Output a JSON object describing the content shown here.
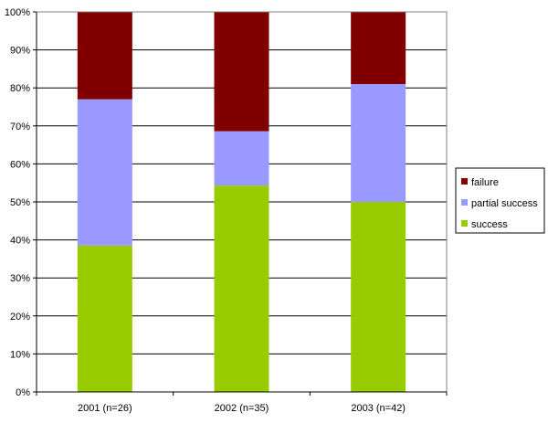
{
  "chart_data": {
    "type": "bar",
    "stacked": true,
    "percent_stacked": true,
    "title": "",
    "xlabel": "",
    "ylabel": "",
    "categories": [
      "2001 (n=26)",
      "2002 (n=35)",
      "2003 (n=42)"
    ],
    "series": [
      {
        "name": "success",
        "values": [
          38.5,
          54.3,
          50.0
        ],
        "color": "#99cc00"
      },
      {
        "name": "partial success",
        "values": [
          38.5,
          14.3,
          31.0
        ],
        "color": "#9999ff"
      },
      {
        "name": "failure",
        "values": [
          23.0,
          31.4,
          19.0
        ],
        "color": "#800000"
      }
    ],
    "legend_order": [
      "failure",
      "partial success",
      "success"
    ],
    "ylim": [
      0,
      100
    ],
    "yticks": [
      "0%",
      "10%",
      "20%",
      "30%",
      "40%",
      "50%",
      "60%",
      "70%",
      "80%",
      "90%",
      "100%"
    ],
    "grid": true,
    "legend_position": "right"
  }
}
